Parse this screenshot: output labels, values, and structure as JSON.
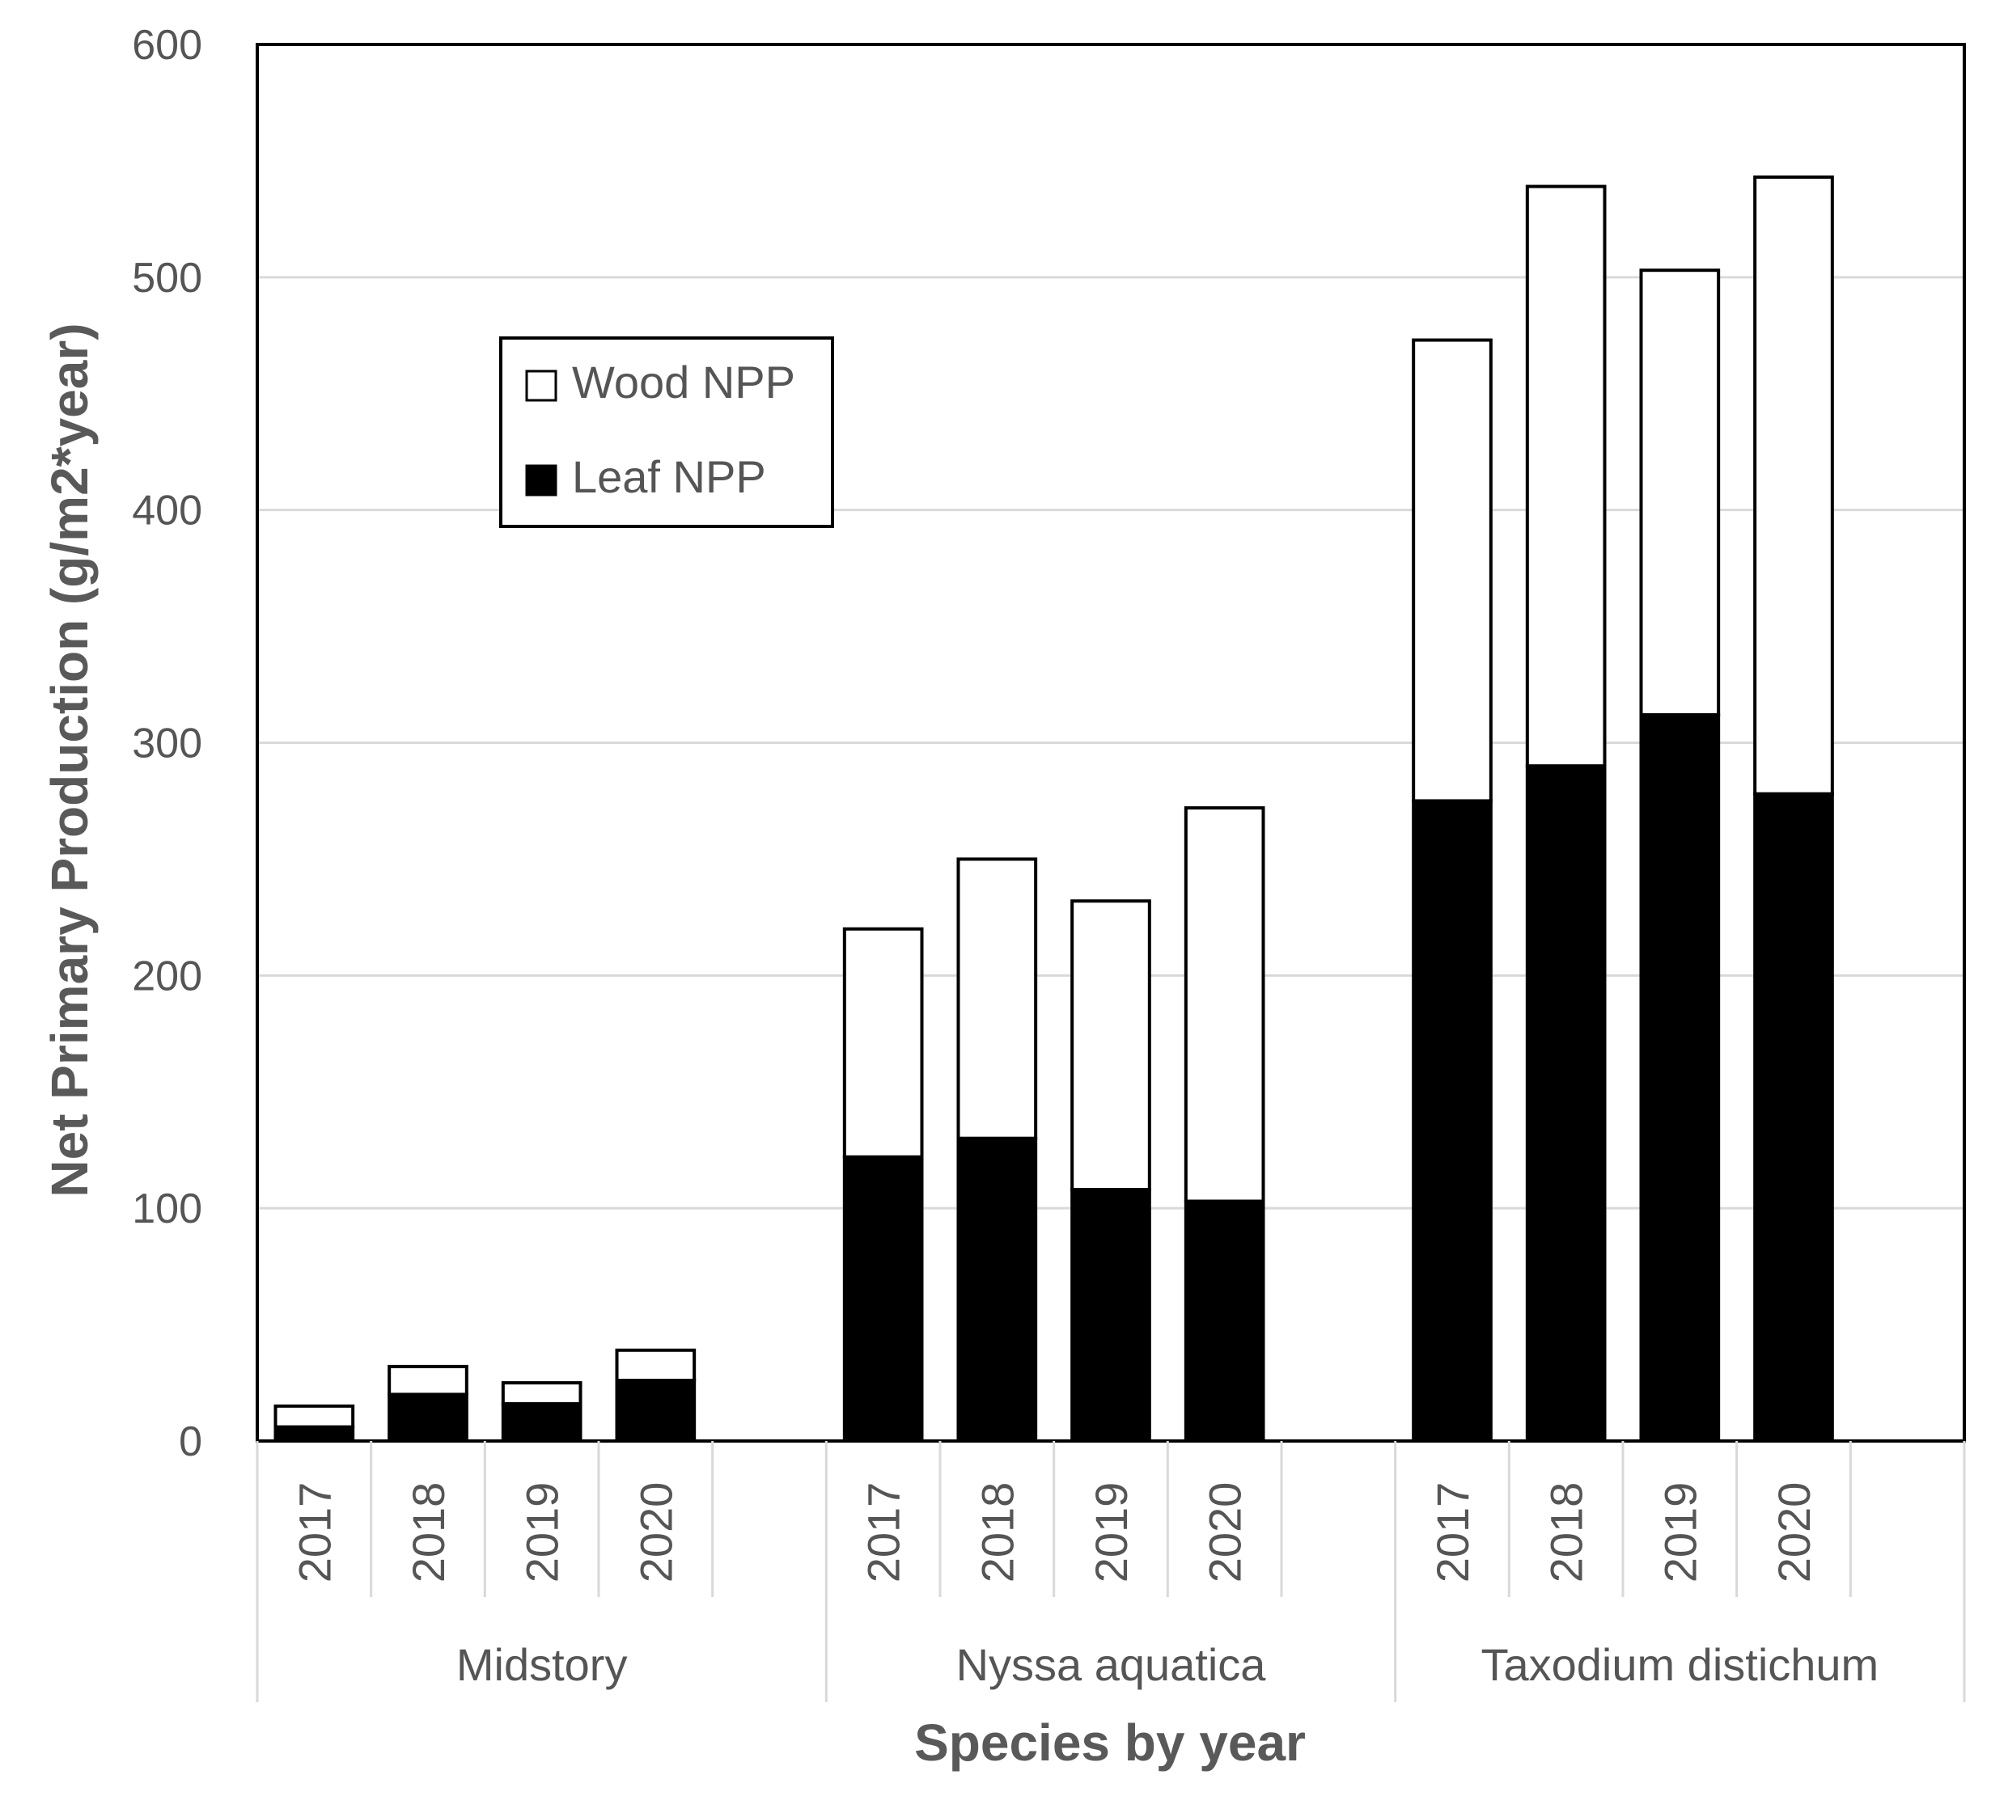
{
  "chart_data": {
    "type": "bar",
    "stacked": true,
    "title": "",
    "xlabel": "Species by year",
    "ylabel": "Net Primary Production (g/m2*year)",
    "ylim": [
      0,
      600
    ],
    "yticks": [
      "0",
      "100",
      "200",
      "300",
      "400",
      "500",
      "600"
    ],
    "groups": [
      {
        "name": "Midstory",
        "years": [
          "2017",
          "2018",
          "2019",
          "2020"
        ]
      },
      {
        "name": "Nyssa aquatica",
        "years": [
          "2017",
          "2018",
          "2019",
          "2020"
        ]
      },
      {
        "name": "Taxodium distichum",
        "years": [
          "2017",
          "2018",
          "2019",
          "2020"
        ]
      }
    ],
    "series": [
      {
        "name": "Leaf NPP",
        "color": "#000000",
        "values": [
          6,
          20,
          16,
          26,
          122,
          130,
          108,
          103,
          275,
          290,
          312,
          278
        ]
      },
      {
        "name": "Wood NPP",
        "color": "#ffffff",
        "values": [
          9,
          12,
          9,
          13,
          98,
          120,
          124,
          169,
          198,
          249,
          191,
          265
        ]
      }
    ],
    "legend": {
      "position": "top-left",
      "entries": [
        "Wood NPP",
        "Leaf NPP"
      ]
    },
    "grid": true
  }
}
